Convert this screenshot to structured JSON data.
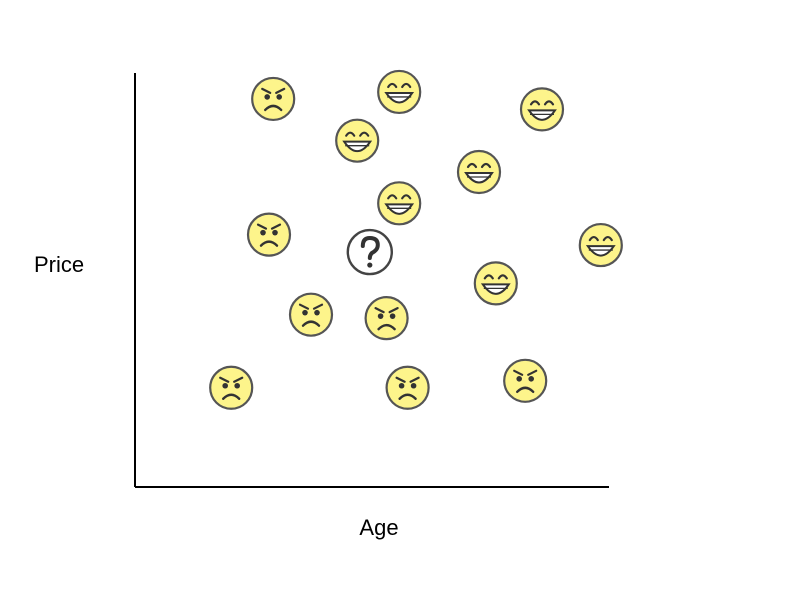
{
  "chart_data": {
    "type": "scatter",
    "xlabel": "Age",
    "ylabel": "Price",
    "xlim": [
      0,
      100
    ],
    "ylim": [
      0,
      100
    ],
    "grid": false,
    "legend": "none",
    "colors": {
      "face_fill": "#fdf48b",
      "face_stroke": "#555555",
      "query_fill": "#ffffff",
      "query_stroke": "#444444",
      "axis": "#000000"
    },
    "points": [
      {
        "x": 21,
        "y": 96,
        "label": "unhappy"
      },
      {
        "x": 51,
        "y": 98,
        "label": "happy"
      },
      {
        "x": 85,
        "y": 93,
        "label": "happy"
      },
      {
        "x": 41,
        "y": 84,
        "label": "happy"
      },
      {
        "x": 70,
        "y": 75,
        "label": "happy"
      },
      {
        "x": 51,
        "y": 66,
        "label": "happy"
      },
      {
        "x": 20,
        "y": 57,
        "label": "unhappy"
      },
      {
        "x": 99,
        "y": 54,
        "label": "happy"
      },
      {
        "x": 74,
        "y": 43,
        "label": "happy"
      },
      {
        "x": 30,
        "y": 34,
        "label": "unhappy"
      },
      {
        "x": 48,
        "y": 33,
        "label": "unhappy"
      },
      {
        "x": 81,
        "y": 15,
        "label": "unhappy"
      },
      {
        "x": 53,
        "y": 13,
        "label": "unhappy"
      },
      {
        "x": 11,
        "y": 13,
        "label": "unhappy"
      }
    ],
    "query_point": {
      "x": 44,
      "y": 52,
      "label": "unknown"
    }
  }
}
